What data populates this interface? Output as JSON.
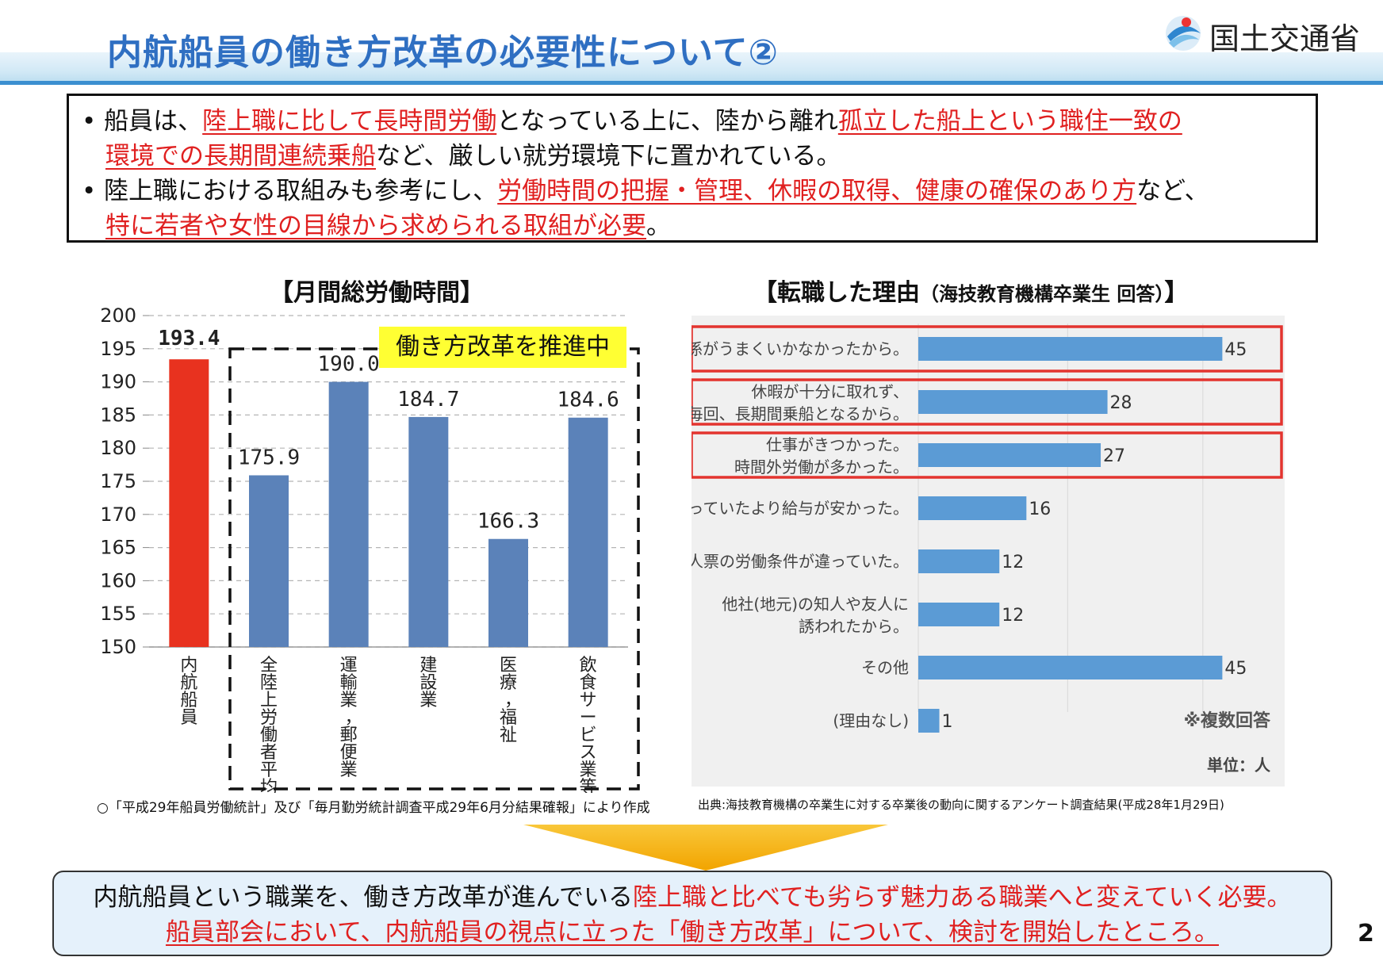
{
  "header": {
    "title": "内航船員の働き方改革の必要性について②",
    "ministry": "国土交通省"
  },
  "summary": {
    "b1": {
      "bullet": "•",
      "p1": "船員は、",
      "r1": "陸上職に比して長時間労働",
      "p2": "となっている上に、陸から離れ",
      "r2": "孤立した船上という職住一致の",
      "r3": "環境での長期間連続乗船",
      "p3": "など、厳しい就労環境下に置かれている。"
    },
    "b2": {
      "bullet": "•",
      "p1": "陸上職における取組みも参考にし、",
      "r1": "労働時間の把握・管理、休暇の取得、健康の確保のあり方",
      "p2": "など、",
      "r2": "特に若者や女性の目線から求められる取組が必要",
      "p3": "。"
    }
  },
  "chart_data": [
    {
      "type": "bar",
      "title": "【月間総労働時間】",
      "categories": [
        "内航船員",
        "全陸上労働者平均",
        "運輸業，郵便業",
        "建設業",
        "医療，福祉",
        "飲食サービス業等"
      ],
      "values": [
        193.4,
        175.9,
        190.0,
        184.7,
        166.3,
        184.6
      ],
      "value_labels": [
        "193.4",
        "175.9",
        "190.0",
        "184.7",
        "166.3",
        "184.6"
      ],
      "ylim": [
        150,
        200
      ],
      "yticks": [
        "150",
        "155",
        "160",
        "165",
        "170",
        "175",
        "180",
        "185",
        "190",
        "195",
        "200"
      ],
      "colors": [
        "#e8321f",
        "#5b82b9",
        "#5b82b9",
        "#5b82b9",
        "#5b82b9",
        "#5b82b9"
      ],
      "grid": true,
      "annotation": "働き方改革を推進中",
      "source": "○「平成29年船員労働統計」及び「毎月勤労統計調査平成29年6月分結果確報」により作成"
    },
    {
      "type": "bar",
      "orientation": "horizontal",
      "title": "【転職した理由",
      "title_note": "（海技教育機構卒業生 回答）",
      "title_close": "】",
      "categories": [
        [
          "人間関係がうまくいかなかったから。"
        ],
        [
          "休暇が十分に取れず、",
          "毎回、長期間乗船となるから。"
        ],
        [
          "仕事がきつかった。",
          "時間外労働が多かった。"
        ],
        [
          "思っていたより給与が安かった。"
        ],
        [
          "求人票の労働条件が違っていた。"
        ],
        [
          "他社(地元)の知人や友人に",
          "誘われたから。"
        ],
        [
          "その他"
        ],
        [
          "(理由なし)"
        ]
      ],
      "values": [
        45,
        28,
        27,
        16,
        12,
        12,
        45,
        1
      ],
      "value_labels": [
        "45",
        "28",
        "27",
        "16",
        "12",
        "12",
        "45",
        "1"
      ],
      "xlim": [
        0,
        50
      ],
      "highlighted": [
        0,
        1,
        2
      ],
      "color": "#5b9bd5",
      "note": "※複数回答",
      "unit": "単位：人",
      "source": "出典:海技教育機構の卒業生に対する卒業後の動向に関するアンケート調査結果(平成28年1月29日)"
    }
  ],
  "conclusion": {
    "l1a": "内航船員という職業を、働き方改革が進んでいる",
    "l1b": "陸上職と比べても劣らず魅力ある職業へと変えていく必要。",
    "l2": "船員部会において、内航船員の視点に立った「働き方改革」について、検討を開始したところ。"
  },
  "page_number": "2",
  "colors": {
    "title_blue": "#2f6fc2",
    "accent_red": "#e02020",
    "highlight_yellow": "#ffff33"
  }
}
